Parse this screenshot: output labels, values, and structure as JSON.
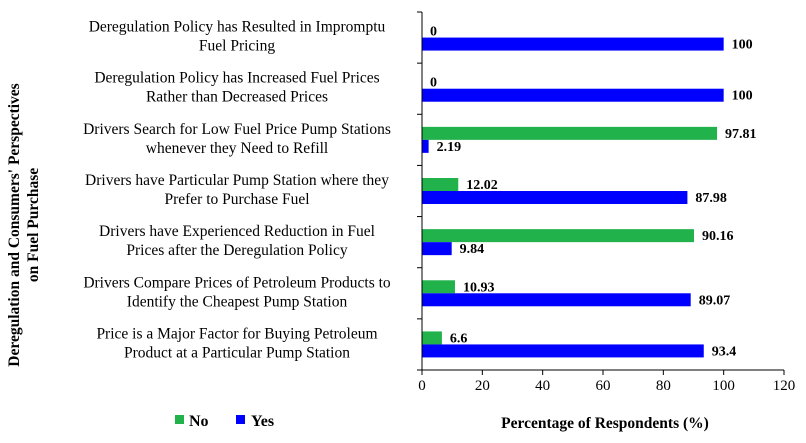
{
  "chart_data": {
    "type": "bar",
    "orientation": "horizontal",
    "categories": [
      [
        "Deregulation Policy has Resulted in Impromptu",
        "Fuel Pricing"
      ],
      [
        "Deregulation Policy has Increased Fuel Prices",
        "Rather than Decreased Prices"
      ],
      [
        "Drivers Search for Low Fuel Price Pump Stations",
        "whenever they Need to Refill"
      ],
      [
        "Drivers have Particular Pump Station where they",
        "Prefer to Purchase Fuel"
      ],
      [
        "Drivers have Experienced Reduction in Fuel",
        "Prices after the Deregulation Policy"
      ],
      [
        "Drivers Compare Prices of Petroleum Products to",
        "Identify the Cheapest Pump Station"
      ],
      [
        "Price is a Major Factor for Buying Petroleum",
        "Product at a Particular Pump Station"
      ]
    ],
    "series": [
      {
        "name": "No",
        "color": "#21b24b",
        "values": [
          0,
          0,
          97.81,
          12.02,
          90.16,
          10.93,
          6.6
        ],
        "labels": [
          "0",
          "0",
          "97.81",
          "12.02",
          "90.16",
          "10.93",
          "6.6"
        ]
      },
      {
        "name": "Yes",
        "color": "#0000ff",
        "values": [
          100,
          100,
          2.19,
          87.98,
          9.84,
          89.07,
          93.4
        ],
        "labels": [
          "100",
          "100",
          "2.19",
          "87.98",
          "9.84",
          "89.07",
          "93.4"
        ]
      }
    ],
    "xlabel": "Percentage of Respondents (%)",
    "ylabel": [
      "Deregulation and Consumers' Perspectives",
      "on Fuel Purchase"
    ],
    "xlim": [
      0,
      120
    ],
    "xticks": [
      "0",
      "20",
      "40",
      "60",
      "80",
      "100",
      "120"
    ],
    "grid": false,
    "legend": "bottom-left"
  }
}
